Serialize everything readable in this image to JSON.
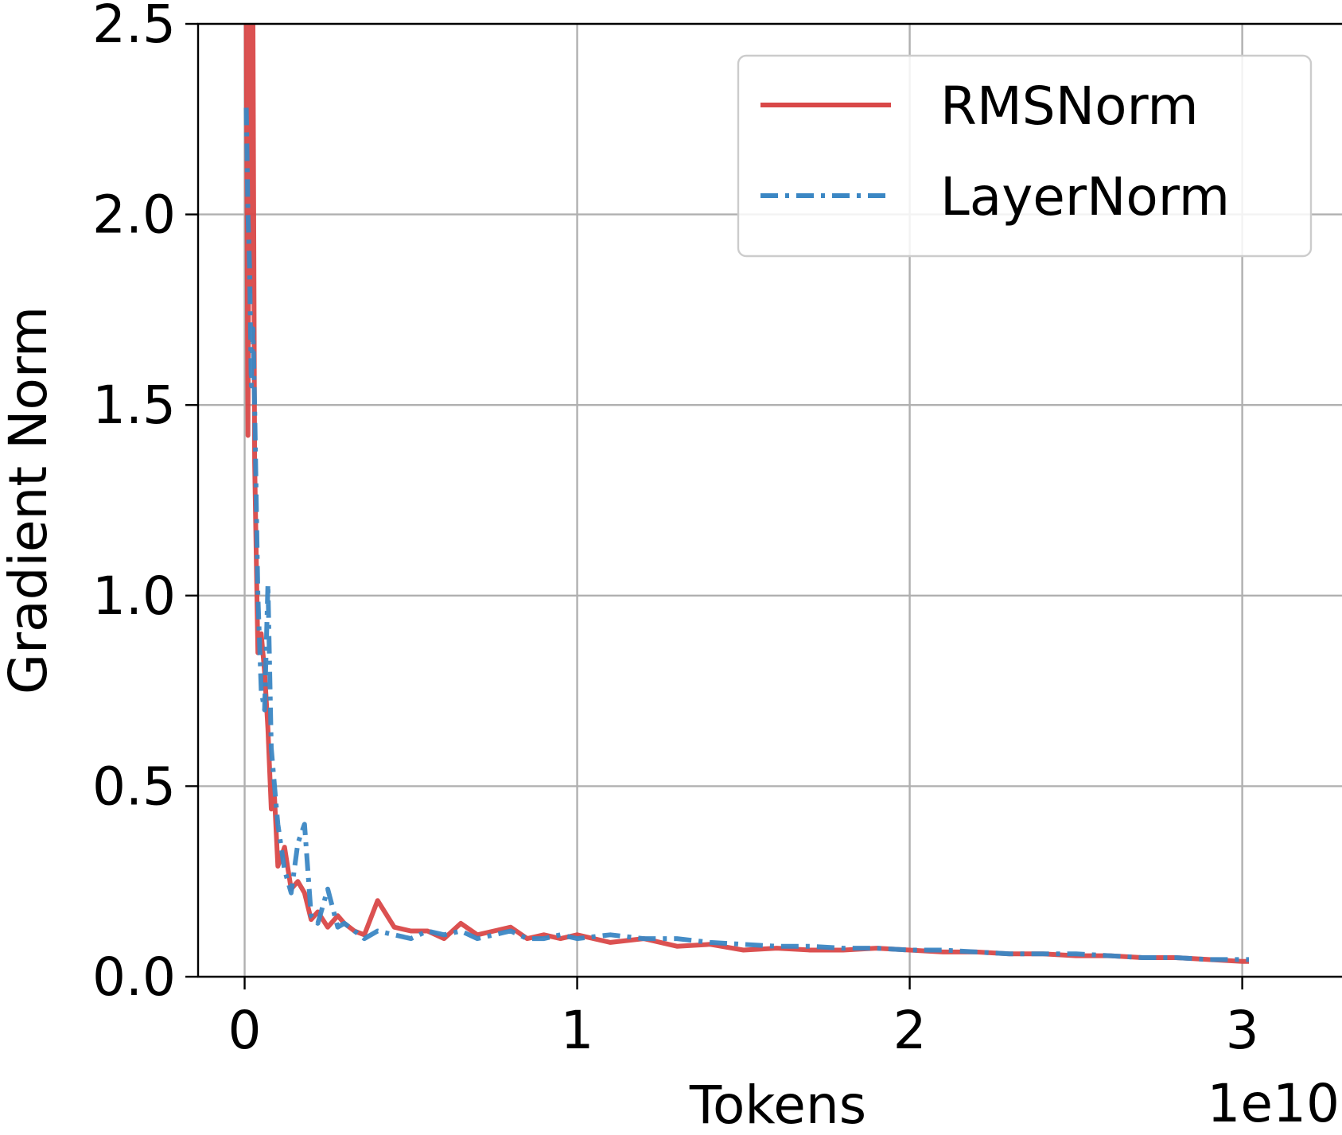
{
  "chart_data": {
    "type": "line",
    "xlabel": "Tokens",
    "ylabel": "Gradient Norm",
    "x_multiplier_label": "1e10",
    "xlim": [
      -0.14,
      3.3
    ],
    "ylim": [
      0.0,
      2.5
    ],
    "x_ticks": [
      0,
      1,
      2,
      3
    ],
    "x_tick_labels": [
      "0",
      "1",
      "2",
      "3"
    ],
    "y_ticks": [
      0.0,
      0.5,
      1.0,
      1.5,
      2.0,
      2.5
    ],
    "y_tick_labels": [
      "0.0",
      "0.5",
      "1.0",
      "1.5",
      "2.0",
      "2.5"
    ],
    "grid": true,
    "legend_position": "top-right",
    "x_unit_scale": "1e10",
    "series": [
      {
        "name": "RMSNorm",
        "color": "#d94848",
        "line_style": "solid",
        "x": [
          0.005,
          0.01,
          0.015,
          0.02,
          0.025,
          0.03,
          0.04,
          0.05,
          0.06,
          0.07,
          0.08,
          0.09,
          0.1,
          0.12,
          0.14,
          0.16,
          0.18,
          0.2,
          0.22,
          0.25,
          0.28,
          0.3,
          0.33,
          0.36,
          0.4,
          0.45,
          0.5,
          0.55,
          0.6,
          0.65,
          0.7,
          0.75,
          0.8,
          0.85,
          0.9,
          0.95,
          1.0,
          1.1,
          1.2,
          1.3,
          1.4,
          1.5,
          1.6,
          1.7,
          1.8,
          1.9,
          2.0,
          2.1,
          2.2,
          2.3,
          2.4,
          2.5,
          2.6,
          2.7,
          2.8,
          2.9,
          3.0,
          3.02
        ],
        "y": [
          2.5,
          1.42,
          2.5,
          1.8,
          2.5,
          1.35,
          0.85,
          0.9,
          0.8,
          0.65,
          0.44,
          0.47,
          0.29,
          0.34,
          0.23,
          0.25,
          0.22,
          0.15,
          0.17,
          0.13,
          0.16,
          0.14,
          0.12,
          0.11,
          0.2,
          0.13,
          0.12,
          0.12,
          0.1,
          0.14,
          0.11,
          0.12,
          0.13,
          0.1,
          0.11,
          0.1,
          0.11,
          0.09,
          0.1,
          0.08,
          0.085,
          0.07,
          0.075,
          0.07,
          0.07,
          0.075,
          0.07,
          0.065,
          0.065,
          0.06,
          0.06,
          0.055,
          0.055,
          0.05,
          0.05,
          0.045,
          0.04,
          0.04
        ]
      },
      {
        "name": "LayerNorm",
        "color": "#3b87c4",
        "line_style": "dashdot",
        "x": [
          0.005,
          0.01,
          0.015,
          0.02,
          0.025,
          0.03,
          0.04,
          0.05,
          0.06,
          0.07,
          0.08,
          0.09,
          0.1,
          0.12,
          0.14,
          0.16,
          0.18,
          0.2,
          0.22,
          0.25,
          0.28,
          0.3,
          0.33,
          0.36,
          0.4,
          0.45,
          0.5,
          0.55,
          0.6,
          0.65,
          0.7,
          0.75,
          0.8,
          0.85,
          0.9,
          0.95,
          1.0,
          1.1,
          1.2,
          1.3,
          1.4,
          1.5,
          1.6,
          1.7,
          1.8,
          1.9,
          2.0,
          2.1,
          2.2,
          2.3,
          2.4,
          2.5,
          2.6,
          2.7,
          2.8,
          2.9,
          3.0,
          3.02
        ],
        "y": [
          2.28,
          2.0,
          1.86,
          1.55,
          1.7,
          1.5,
          1.0,
          0.75,
          0.7,
          1.03,
          0.6,
          0.5,
          0.4,
          0.28,
          0.22,
          0.35,
          0.4,
          0.16,
          0.14,
          0.23,
          0.13,
          0.14,
          0.12,
          0.1,
          0.12,
          0.11,
          0.1,
          0.12,
          0.11,
          0.12,
          0.1,
          0.11,
          0.12,
          0.1,
          0.1,
          0.11,
          0.1,
          0.11,
          0.1,
          0.1,
          0.09,
          0.085,
          0.08,
          0.08,
          0.075,
          0.075,
          0.07,
          0.07,
          0.065,
          0.06,
          0.06,
          0.06,
          0.055,
          0.05,
          0.05,
          0.045,
          0.045,
          0.045
        ]
      }
    ]
  }
}
